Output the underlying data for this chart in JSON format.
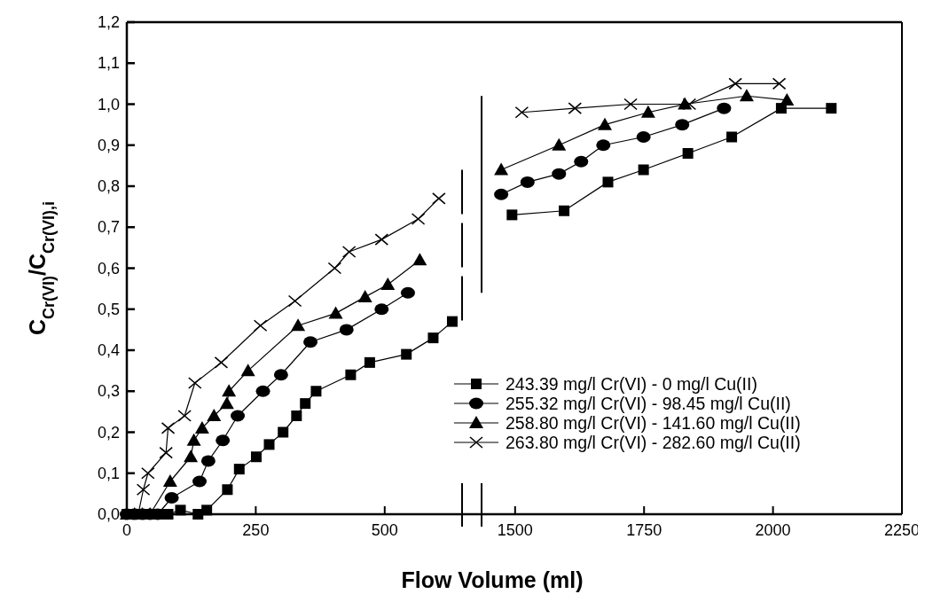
{
  "chart_data": [
    {
      "type": "line",
      "xlabel": "Flow Volume (ml)",
      "ylabel": "C$_{Cr(VI)}$/C$_{Cr(VI),i}$",
      "xlim": [
        0,
        650
      ],
      "xticks": [
        0,
        250,
        500
      ],
      "ylim": [
        0,
        1.2
      ],
      "yticks": [
        {
          "value": 0,
          "label": "0,0"
        },
        {
          "value": 0.1,
          "label": "0,1"
        },
        {
          "value": 0.2,
          "label": "0,2"
        },
        {
          "value": 0.3,
          "label": "0,3"
        },
        {
          "value": 0.4,
          "label": "0,4"
        },
        {
          "value": 0.5,
          "label": "0,5"
        },
        {
          "value": 0.6,
          "label": "0,6"
        },
        {
          "value": 0.7,
          "label": "0,7"
        },
        {
          "value": 0.8,
          "label": "0,8"
        },
        {
          "value": 0.9,
          "label": "0,9"
        },
        {
          "value": 1.0,
          "label": "1,0"
        },
        {
          "value": 1.1,
          "label": "1,1"
        },
        {
          "value": 1.2,
          "label": "1,2"
        }
      ],
      "series": [
        {
          "color": "#000000",
          "marker": "square",
          "x": [
            0,
            20,
            40,
            60,
            80,
            104,
            138,
            155,
            195,
            218,
            251,
            276,
            303,
            329,
            346,
            367,
            434,
            471,
            542,
            594,
            631
          ],
          "values": [
            0,
            0,
            0,
            0,
            0,
            0.01,
            0,
            0.01,
            0.06,
            0.11,
            0.14,
            0.17,
            0.2,
            0.24,
            0.27,
            0.3,
            0.34,
            0.37,
            0.39,
            0.43,
            0.47
          ]
        },
        {
          "color": "#000000",
          "marker": "circle",
          "x": [
            0,
            15,
            30,
            45,
            60,
            87,
            141,
            158,
            186,
            215,
            264,
            299,
            356,
            426,
            494,
            545
          ],
          "values": [
            0,
            0,
            0,
            0,
            0,
            0.04,
            0.08,
            0.13,
            0.18,
            0.24,
            0.3,
            0.34,
            0.42,
            0.45,
            0.5,
            0.54
          ]
        },
        {
          "color": "#000000",
          "marker": "triangle",
          "x": [
            0,
            15,
            30,
            45,
            84,
            124,
            130,
            146,
            169,
            194,
            198,
            235,
            332,
            405,
            462,
            506,
            568
          ],
          "values": [
            0,
            0,
            0,
            0,
            0.08,
            0.14,
            0.18,
            0.21,
            0.24,
            0.27,
            0.3,
            0.35,
            0.46,
            0.49,
            0.53,
            0.56,
            0.62
          ]
        },
        {
          "color": "#000000",
          "marker": "cross",
          "x": [
            8,
            22,
            32,
            41,
            76,
            80,
            112,
            132,
            183,
            259,
            326,
            403,
            431,
            494,
            565,
            605
          ],
          "values": [
            0,
            0,
            0.06,
            0.1,
            0.15,
            0.21,
            0.24,
            0.32,
            0.37,
            0.46,
            0.52,
            0.6,
            0.64,
            0.67,
            0.72,
            0.77
          ]
        }
      ]
    },
    {
      "type": "line",
      "xlim": [
        1435,
        2250
      ],
      "xticks": [
        1500,
        1750,
        2000,
        2250
      ],
      "ylim": [
        0,
        1.2
      ],
      "tick_labels": "x",
      "legend": "bottom",
      "series": [
        {
          "name": "243.39 mg/l Cr(VI) - 0 mg/l Cu(II)",
          "color": "#000000",
          "marker": "square",
          "x": [
            1494,
            1595,
            1680,
            1749,
            1835,
            1920,
            2016,
            2113
          ],
          "values": [
            0.73,
            0.74,
            0.81,
            0.84,
            0.88,
            0.92,
            0.99,
            0.99
          ]
        },
        {
          "name": "255.32 mg/l Cr(VI) - 98.45 mg/l Cu(II)",
          "color": "#000000",
          "marker": "circle",
          "x": [
            1473,
            1524,
            1585,
            1628,
            1671,
            1749,
            1824,
            1905
          ],
          "values": [
            0.78,
            0.81,
            0.83,
            0.86,
            0.9,
            0.92,
            0.95,
            0.99
          ]
        },
        {
          "name": "258.80 mg/l Cr(VI) - 141.60 mg/l Cu(II)",
          "color": "#000000",
          "marker": "triangle",
          "x": [
            1473,
            1585,
            1674,
            1758,
            1829,
            1949,
            2027
          ],
          "values": [
            0.84,
            0.9,
            0.95,
            0.98,
            1.0,
            1.02,
            1.01
          ]
        },
        {
          "name": "263.80 mg/l Cr(VI) - 282.60 mg/l Cu(II)",
          "color": "#000000",
          "marker": "cross",
          "x": [
            1513,
            1616,
            1724,
            1838,
            1927,
            2012
          ],
          "values": [
            0.98,
            0.99,
            1.0,
            1.0,
            1.05,
            1.05
          ]
        }
      ]
    }
  ]
}
